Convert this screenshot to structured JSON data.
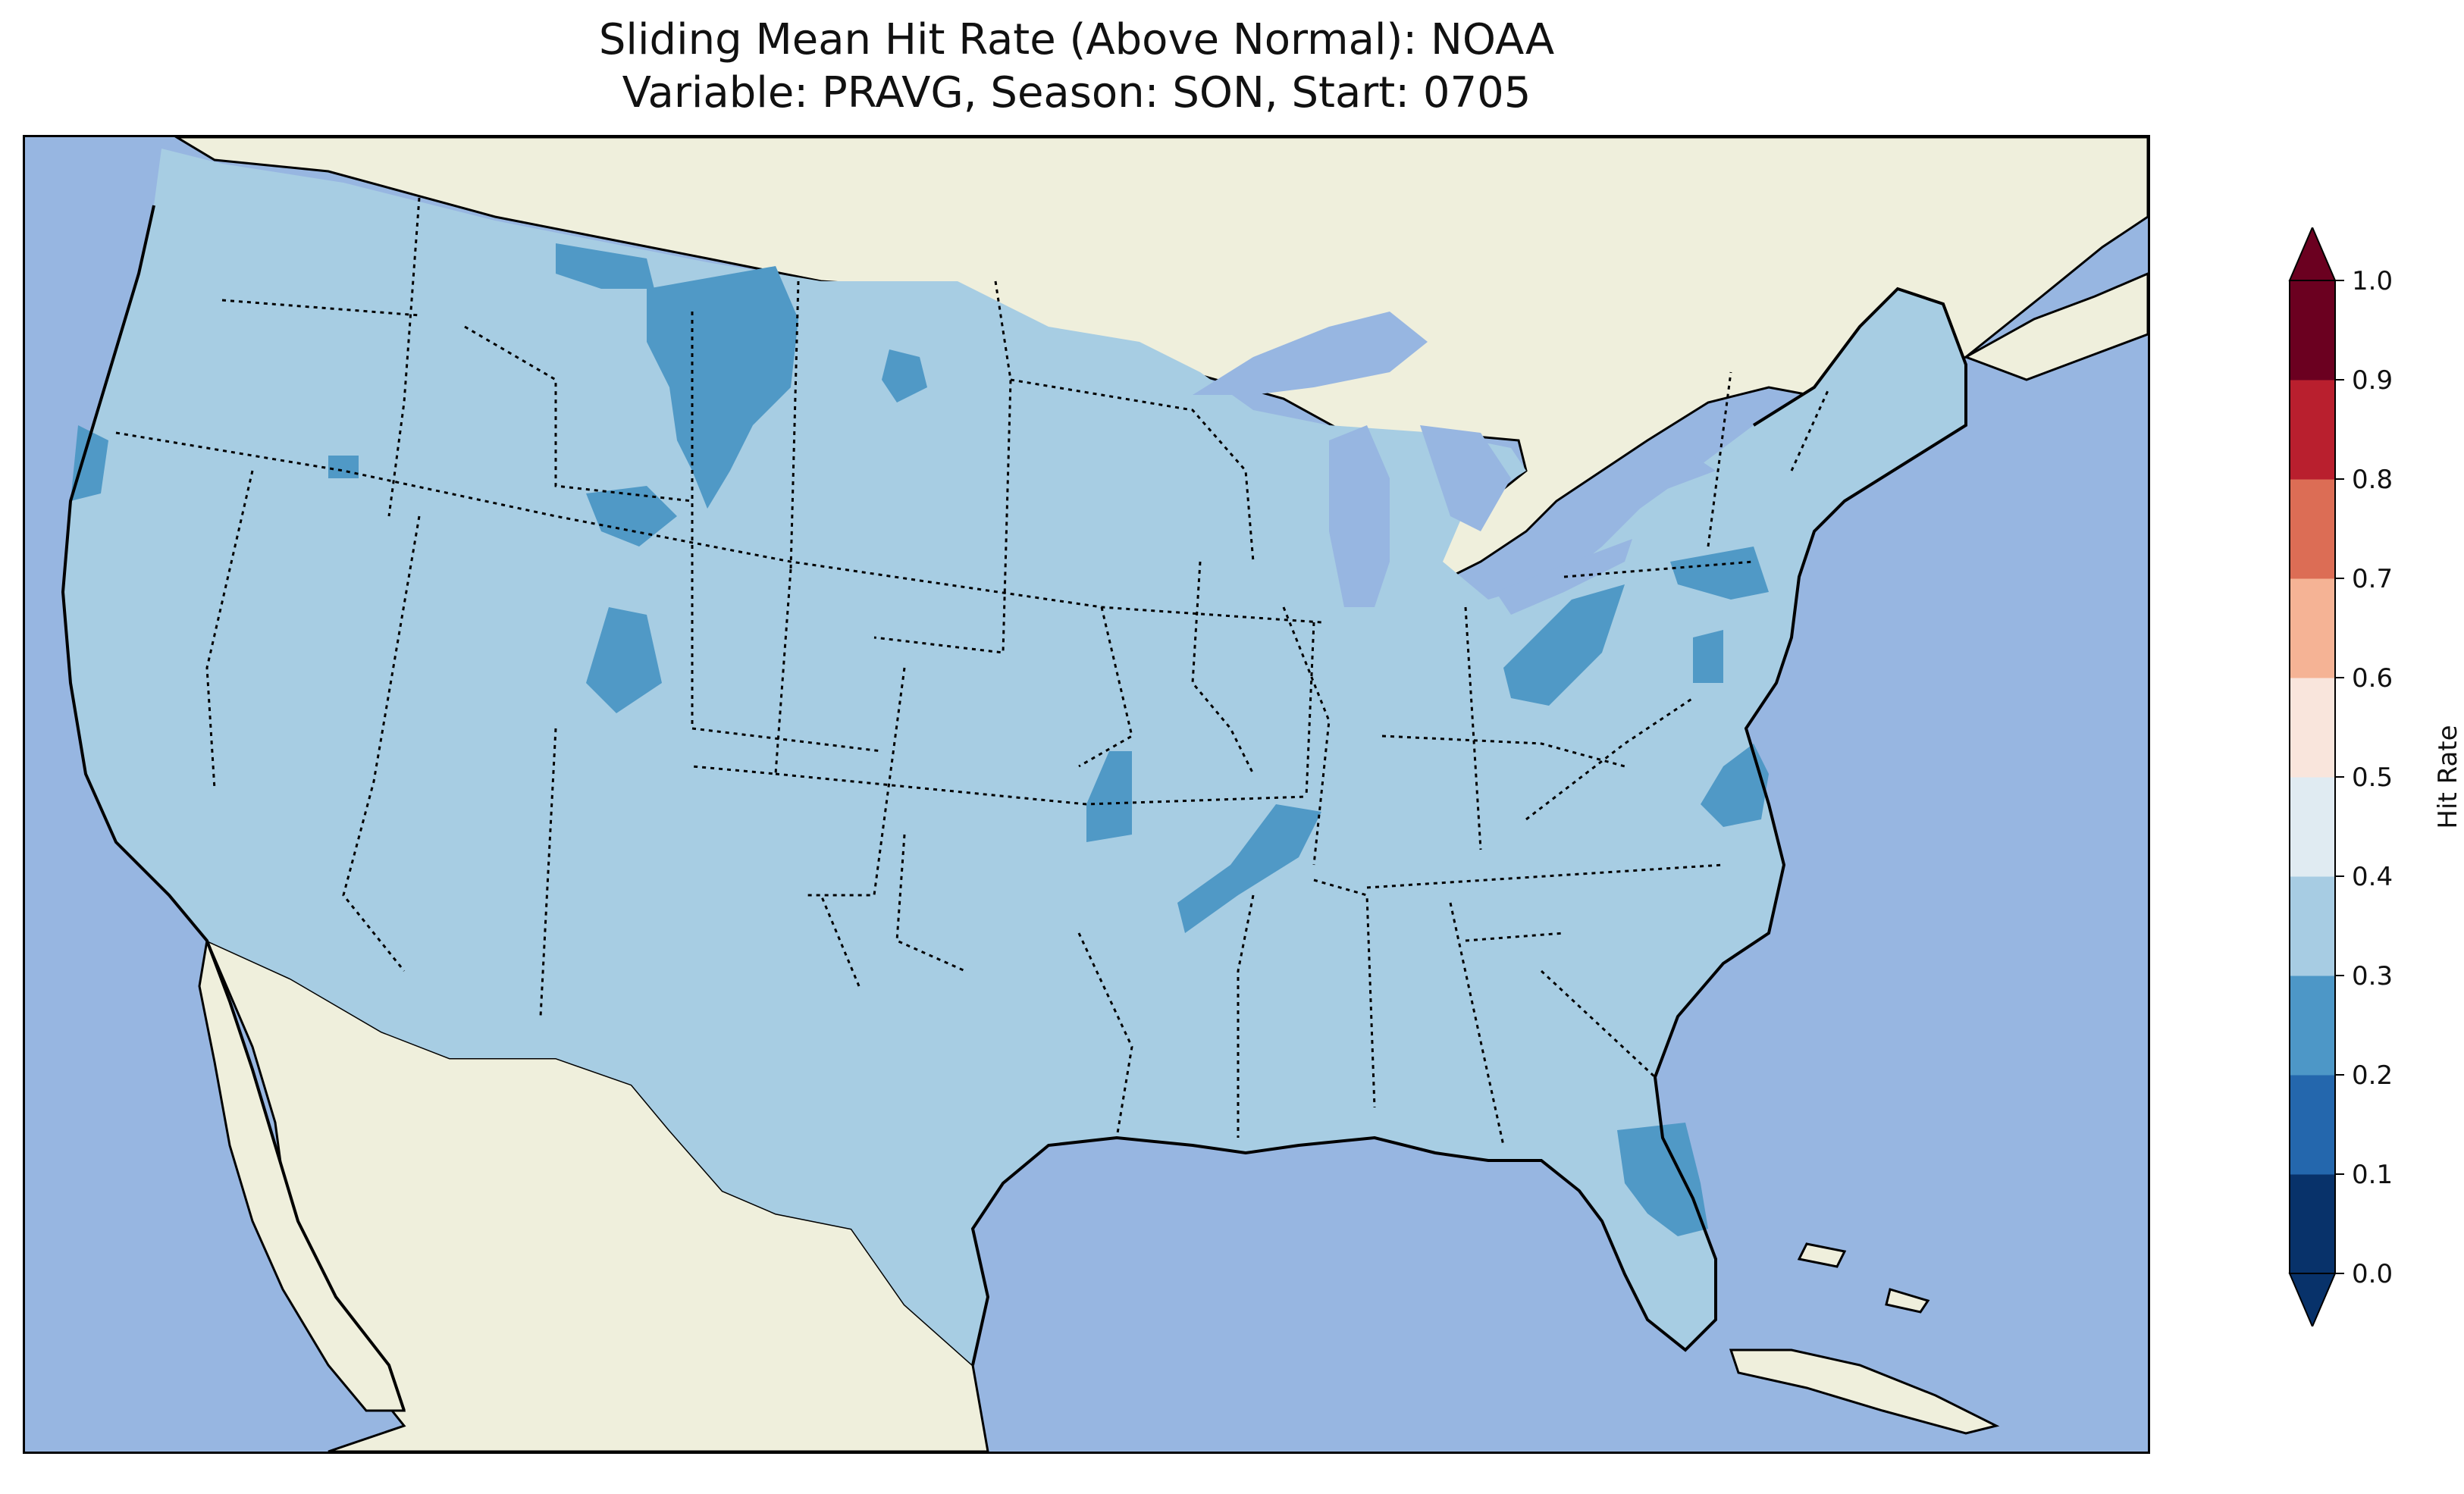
{
  "title_line1": "Sliding Mean Hit Rate (Above Normal): NOAA",
  "title_line2": "Variable: PRAVG, Season: SON, Start: 0705",
  "colors": {
    "ocean": "#97b6e1",
    "land": "#efefdc",
    "domain_fill": "#a7cde3",
    "low_fill": "#5099c6"
  },
  "colorbar": {
    "label": "Hit Rate",
    "ticks": [
      "0.0",
      "0.1",
      "0.2",
      "0.3",
      "0.4",
      "0.5",
      "0.6",
      "0.7",
      "0.8",
      "0.9",
      "1.0"
    ],
    "bins": [
      {
        "range": [
          0.0,
          0.1
        ],
        "color": "#08326a"
      },
      {
        "range": [
          0.1,
          0.2
        ],
        "color": "#2467ad"
      },
      {
        "range": [
          0.2,
          0.3
        ],
        "color": "#4d97c7"
      },
      {
        "range": [
          0.3,
          0.4
        ],
        "color": "#a7cce3"
      },
      {
        "range": [
          0.4,
          0.5
        ],
        "color": "#e0ebf2"
      },
      {
        "range": [
          0.5,
          0.6
        ],
        "color": "#f9e5dc"
      },
      {
        "range": [
          0.6,
          0.7
        ],
        "color": "#f5b395"
      },
      {
        "range": [
          0.7,
          0.8
        ],
        "color": "#dc6d55"
      },
      {
        "range": [
          0.8,
          0.9
        ],
        "color": "#b91f2e"
      },
      {
        "range": [
          0.9,
          1.0
        ],
        "color": "#6b0020"
      }
    ],
    "under_color": "#08326a",
    "over_color": "#6b0020"
  },
  "map": {
    "dominant_value_range": [
      0.3,
      0.4
    ],
    "low_regions": [
      "northern-rockies",
      "central-montana-spot",
      "western-wyoming",
      "northern-colorado",
      "central-north-dakota",
      "northern-california-coast",
      "northeast-oklahoma",
      "arkansas-band",
      "northwest-ohio",
      "western-pennsylvania",
      "north-carolina",
      "virginia-spot",
      "central-florida"
    ]
  }
}
